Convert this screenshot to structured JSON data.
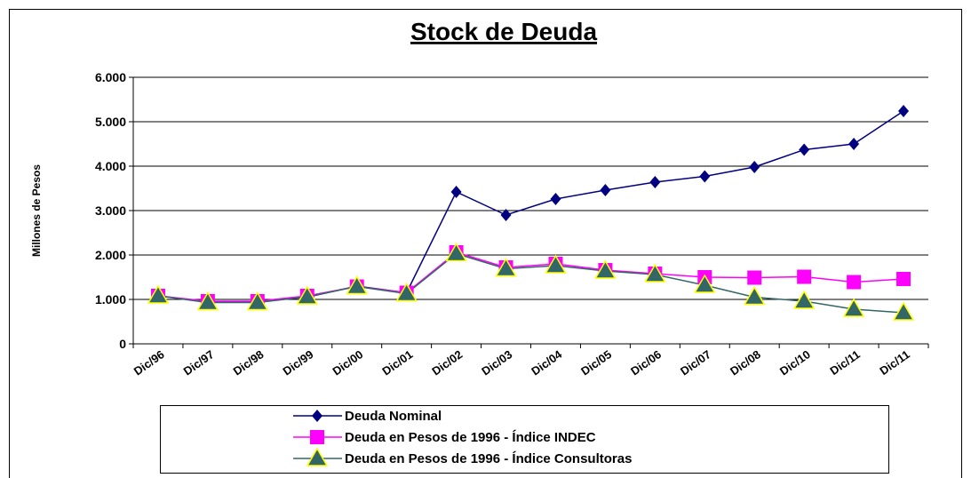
{
  "chart_data": {
    "type": "line",
    "title": "Stock de Deuda",
    "y_label": "Millones de Pesos",
    "categories": [
      "Dic/96",
      "Dic/97",
      "Dic/98",
      "Dic/99",
      "Dic/00",
      "Dic/01",
      "Dic/02",
      "Dic/03",
      "Dic/04",
      "Dic/05",
      "Dic/06",
      "Dic/07",
      "Dic/08",
      "Dic/10",
      "Dic/11",
      "Dic/11"
    ],
    "series": [
      {
        "name": "Deuda Nominal",
        "color": "#000080",
        "marker": "diamond",
        "values": [
          1080,
          950,
          950,
          1050,
          1300,
          1150,
          3420,
          2900,
          3260,
          3460,
          3640,
          3770,
          3980,
          4370,
          4500,
          5240
        ]
      },
      {
        "name": "Deuda en Pesos de 1996 - Índice INDEC",
        "color": "#ff00ff",
        "marker": "square",
        "values": [
          1080,
          960,
          960,
          1080,
          1290,
          1150,
          2060,
          1720,
          1800,
          1660,
          1580,
          1500,
          1490,
          1510,
          1390,
          1460
        ]
      },
      {
        "name": "Deuda  en Pesos de 1996 - Índice Consultoras",
        "color": "#336666",
        "marker": "triangle",
        "values": [
          1080,
          930,
          930,
          1060,
          1290,
          1130,
          2030,
          1690,
          1760,
          1640,
          1560,
          1320,
          1050,
          960,
          780,
          700
        ]
      }
    ],
    "ylim": [
      0,
      6000
    ],
    "yticks": [
      0,
      {
        "value": 1000,
        "label": "1.000"
      },
      {
        "value": 2000,
        "label": "2.000"
      },
      {
        "value": 3000,
        "label": "3.000"
      },
      {
        "value": 4000,
        "label": "4.000"
      },
      {
        "value": 5000,
        "label": "5.000"
      },
      {
        "value": 6000,
        "label": "6.000"
      }
    ],
    "grid": true
  }
}
